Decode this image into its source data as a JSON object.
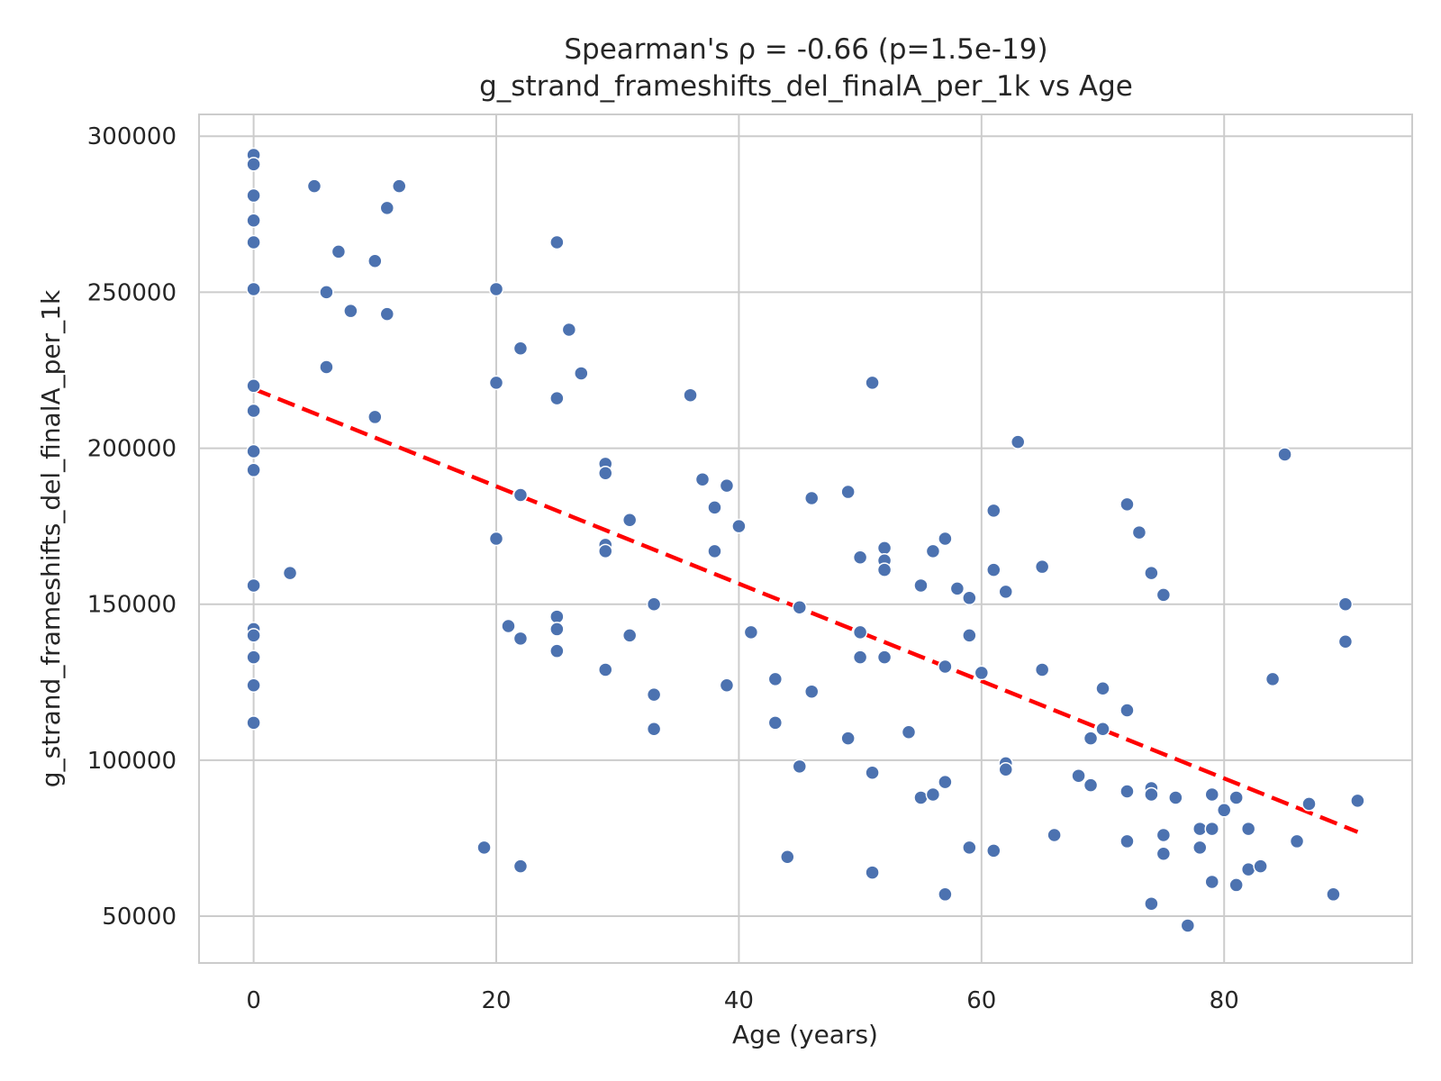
{
  "chart_data": {
    "type": "scatter",
    "title": "Spearman's ρ = -0.66 (p=1.5e-19)",
    "subtitle": "g_strand_frameshifts_del_finalA_per_1k vs Age",
    "xlabel": "Age (years)",
    "ylabel": "g_strand_frameshifts_del_finalA_per_1k",
    "xlim": [
      -4.5,
      95.5
    ],
    "ylim": [
      35000,
      307000
    ],
    "x_ticks": [
      0,
      20,
      40,
      60,
      80
    ],
    "y_ticks": [
      50000,
      100000,
      150000,
      200000,
      250000,
      300000
    ],
    "x_tick_labels": [
      "0",
      "20",
      "40",
      "60",
      "80"
    ],
    "y_tick_labels": [
      "50000",
      "100000",
      "150000",
      "200000",
      "250000",
      "300000"
    ],
    "grid": true,
    "colors": {
      "points": "#4c72b0",
      "trend": "#ff0000",
      "grid": "#cccccc",
      "text": "#262626"
    },
    "trend_line": {
      "style": "dashed",
      "x": [
        0,
        91
      ],
      "y": [
        219000,
        77000
      ]
    },
    "points": [
      {
        "x": 0,
        "y": 294000
      },
      {
        "x": 0,
        "y": 291000
      },
      {
        "x": 0,
        "y": 281000
      },
      {
        "x": 0,
        "y": 273000
      },
      {
        "x": 0,
        "y": 266000
      },
      {
        "x": 0,
        "y": 251000
      },
      {
        "x": 0,
        "y": 220000
      },
      {
        "x": 0,
        "y": 212000
      },
      {
        "x": 0,
        "y": 199000
      },
      {
        "x": 0,
        "y": 193000
      },
      {
        "x": 0,
        "y": 156000
      },
      {
        "x": 0,
        "y": 142000
      },
      {
        "x": 0,
        "y": 140000
      },
      {
        "x": 0,
        "y": 133000
      },
      {
        "x": 0,
        "y": 124000
      },
      {
        "x": 0,
        "y": 112000
      },
      {
        "x": 3,
        "y": 160000
      },
      {
        "x": 5,
        "y": 284000
      },
      {
        "x": 6,
        "y": 250000
      },
      {
        "x": 6,
        "y": 226000
      },
      {
        "x": 7,
        "y": 263000
      },
      {
        "x": 8,
        "y": 244000
      },
      {
        "x": 10,
        "y": 260000
      },
      {
        "x": 10,
        "y": 210000
      },
      {
        "x": 11,
        "y": 277000
      },
      {
        "x": 11,
        "y": 243000
      },
      {
        "x": 12,
        "y": 284000
      },
      {
        "x": 19,
        "y": 72000
      },
      {
        "x": 20,
        "y": 251000
      },
      {
        "x": 20,
        "y": 221000
      },
      {
        "x": 20,
        "y": 171000
      },
      {
        "x": 21,
        "y": 143000
      },
      {
        "x": 22,
        "y": 232000
      },
      {
        "x": 22,
        "y": 185000
      },
      {
        "x": 22,
        "y": 139000
      },
      {
        "x": 22,
        "y": 66000
      },
      {
        "x": 25,
        "y": 266000
      },
      {
        "x": 25,
        "y": 216000
      },
      {
        "x": 25,
        "y": 146000
      },
      {
        "x": 25,
        "y": 142000
      },
      {
        "x": 25,
        "y": 135000
      },
      {
        "x": 26,
        "y": 238000
      },
      {
        "x": 27,
        "y": 224000
      },
      {
        "x": 29,
        "y": 195000
      },
      {
        "x": 29,
        "y": 192000
      },
      {
        "x": 29,
        "y": 169000
      },
      {
        "x": 29,
        "y": 167000
      },
      {
        "x": 29,
        "y": 129000
      },
      {
        "x": 31,
        "y": 177000
      },
      {
        "x": 31,
        "y": 140000
      },
      {
        "x": 33,
        "y": 150000
      },
      {
        "x": 33,
        "y": 121000
      },
      {
        "x": 33,
        "y": 110000
      },
      {
        "x": 36,
        "y": 217000
      },
      {
        "x": 37,
        "y": 190000
      },
      {
        "x": 38,
        "y": 181000
      },
      {
        "x": 38,
        "y": 167000
      },
      {
        "x": 39,
        "y": 188000
      },
      {
        "x": 39,
        "y": 124000
      },
      {
        "x": 40,
        "y": 175000
      },
      {
        "x": 41,
        "y": 141000
      },
      {
        "x": 43,
        "y": 126000
      },
      {
        "x": 43,
        "y": 112000
      },
      {
        "x": 44,
        "y": 69000
      },
      {
        "x": 45,
        "y": 149000
      },
      {
        "x": 45,
        "y": 98000
      },
      {
        "x": 46,
        "y": 184000
      },
      {
        "x": 46,
        "y": 122000
      },
      {
        "x": 49,
        "y": 186000
      },
      {
        "x": 49,
        "y": 107000
      },
      {
        "x": 50,
        "y": 165000
      },
      {
        "x": 50,
        "y": 141000
      },
      {
        "x": 50,
        "y": 133000
      },
      {
        "x": 51,
        "y": 221000
      },
      {
        "x": 51,
        "y": 96000
      },
      {
        "x": 51,
        "y": 64000
      },
      {
        "x": 52,
        "y": 168000
      },
      {
        "x": 52,
        "y": 164000
      },
      {
        "x": 52,
        "y": 161000
      },
      {
        "x": 52,
        "y": 133000
      },
      {
        "x": 54,
        "y": 109000
      },
      {
        "x": 55,
        "y": 156000
      },
      {
        "x": 55,
        "y": 88000
      },
      {
        "x": 56,
        "y": 167000
      },
      {
        "x": 56,
        "y": 89000
      },
      {
        "x": 57,
        "y": 171000
      },
      {
        "x": 57,
        "y": 130000
      },
      {
        "x": 57,
        "y": 93000
      },
      {
        "x": 57,
        "y": 57000
      },
      {
        "x": 58,
        "y": 155000
      },
      {
        "x": 59,
        "y": 152000
      },
      {
        "x": 59,
        "y": 140000
      },
      {
        "x": 59,
        "y": 72000
      },
      {
        "x": 60,
        "y": 128000
      },
      {
        "x": 61,
        "y": 180000
      },
      {
        "x": 61,
        "y": 161000
      },
      {
        "x": 61,
        "y": 71000
      },
      {
        "x": 62,
        "y": 154000
      },
      {
        "x": 62,
        "y": 99000
      },
      {
        "x": 62,
        "y": 97000
      },
      {
        "x": 63,
        "y": 202000
      },
      {
        "x": 65,
        "y": 162000
      },
      {
        "x": 65,
        "y": 129000
      },
      {
        "x": 66,
        "y": 76000
      },
      {
        "x": 68,
        "y": 95000
      },
      {
        "x": 69,
        "y": 107000
      },
      {
        "x": 69,
        "y": 92000
      },
      {
        "x": 70,
        "y": 123000
      },
      {
        "x": 70,
        "y": 110000
      },
      {
        "x": 72,
        "y": 182000
      },
      {
        "x": 72,
        "y": 116000
      },
      {
        "x": 72,
        "y": 90000
      },
      {
        "x": 72,
        "y": 74000
      },
      {
        "x": 73,
        "y": 173000
      },
      {
        "x": 74,
        "y": 160000
      },
      {
        "x": 74,
        "y": 91000
      },
      {
        "x": 74,
        "y": 89000
      },
      {
        "x": 74,
        "y": 54000
      },
      {
        "x": 75,
        "y": 153000
      },
      {
        "x": 75,
        "y": 76000
      },
      {
        "x": 75,
        "y": 70000
      },
      {
        "x": 76,
        "y": 88000
      },
      {
        "x": 77,
        "y": 47000
      },
      {
        "x": 78,
        "y": 78000
      },
      {
        "x": 78,
        "y": 72000
      },
      {
        "x": 79,
        "y": 89000
      },
      {
        "x": 79,
        "y": 78000
      },
      {
        "x": 79,
        "y": 61000
      },
      {
        "x": 80,
        "y": 84000
      },
      {
        "x": 81,
        "y": 88000
      },
      {
        "x": 81,
        "y": 60000
      },
      {
        "x": 82,
        "y": 78000
      },
      {
        "x": 82,
        "y": 65000
      },
      {
        "x": 83,
        "y": 66000
      },
      {
        "x": 84,
        "y": 126000
      },
      {
        "x": 85,
        "y": 198000
      },
      {
        "x": 86,
        "y": 74000
      },
      {
        "x": 87,
        "y": 86000
      },
      {
        "x": 89,
        "y": 57000
      },
      {
        "x": 90,
        "y": 150000
      },
      {
        "x": 90,
        "y": 138000
      },
      {
        "x": 91,
        "y": 87000
      }
    ]
  }
}
